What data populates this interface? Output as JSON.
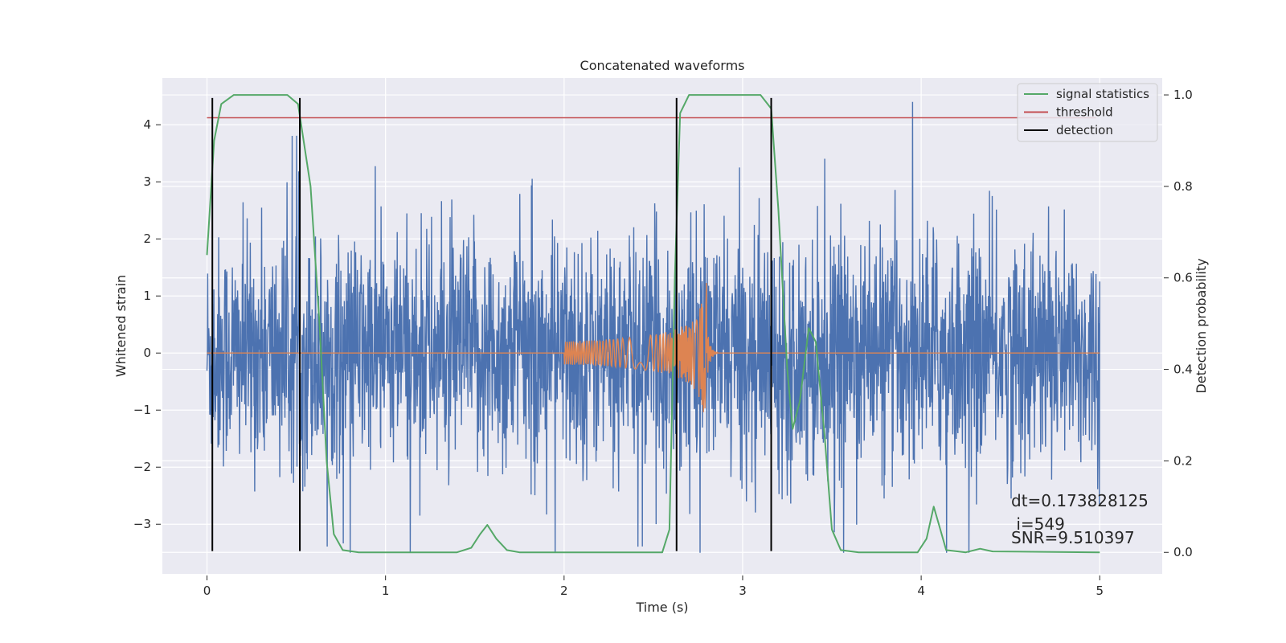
{
  "chart_data": {
    "type": "line",
    "title": "Concatenated waveforms",
    "xlabel": "Time (s)",
    "ylabel": "Whitened strain",
    "ylabel_right": "Detection probability",
    "xlim": [
      -0.25,
      5.35
    ],
    "ylim": [
      -3.87,
      4.82
    ],
    "ylim_right": [
      -0.047,
      1.037
    ],
    "xticks": [
      "0",
      "1",
      "2",
      "3",
      "4",
      "5"
    ],
    "yticks": [
      "−3",
      "−2",
      "−1",
      "0",
      "1",
      "2",
      "3",
      "4"
    ],
    "yticks_right": [
      "0.0",
      "0.2",
      "0.4",
      "0.6",
      "0.8",
      "1.0"
    ],
    "grid": true,
    "legend_position": "top-right",
    "colors": {
      "strain": "#4c72b0",
      "template": "#dd8452",
      "signal": "#55a868",
      "threshold": "#c44e52",
      "detection": "#000000",
      "background": "#eaeaf2"
    },
    "series": [
      {
        "name": "signal statistics",
        "axis": "right",
        "points": [
          [
            0.0,
            0.65
          ],
          [
            0.04,
            0.9
          ],
          [
            0.08,
            0.98
          ],
          [
            0.15,
            1.0
          ],
          [
            0.45,
            1.0
          ],
          [
            0.51,
            0.98
          ],
          [
            0.58,
            0.8
          ],
          [
            0.63,
            0.5
          ],
          [
            0.67,
            0.2
          ],
          [
            0.71,
            0.04
          ],
          [
            0.76,
            0.005
          ],
          [
            0.85,
            0.0
          ],
          [
            1.4,
            0.0
          ],
          [
            1.48,
            0.01
          ],
          [
            1.53,
            0.04
          ],
          [
            1.57,
            0.06
          ],
          [
            1.62,
            0.03
          ],
          [
            1.68,
            0.005
          ],
          [
            1.75,
            0.0
          ],
          [
            2.55,
            0.0
          ],
          [
            2.59,
            0.05
          ],
          [
            2.62,
            0.6
          ],
          [
            2.65,
            0.96
          ],
          [
            2.7,
            1.0
          ],
          [
            3.1,
            1.0
          ],
          [
            3.16,
            0.97
          ],
          [
            3.2,
            0.75
          ],
          [
            3.25,
            0.4
          ],
          [
            3.28,
            0.27
          ],
          [
            3.32,
            0.33
          ],
          [
            3.37,
            0.49
          ],
          [
            3.41,
            0.46
          ],
          [
            3.46,
            0.25
          ],
          [
            3.5,
            0.05
          ],
          [
            3.55,
            0.005
          ],
          [
            3.65,
            0.0
          ],
          [
            3.98,
            0.0
          ],
          [
            4.03,
            0.03
          ],
          [
            4.07,
            0.1
          ],
          [
            4.1,
            0.06
          ],
          [
            4.14,
            0.005
          ],
          [
            4.25,
            0.0
          ],
          [
            4.33,
            0.008
          ],
          [
            4.4,
            0.002
          ],
          [
            5.0,
            0.0
          ]
        ]
      },
      {
        "name": "threshold",
        "axis": "right",
        "points": [
          [
            0.0,
            0.95
          ],
          [
            4.98,
            0.95
          ]
        ]
      },
      {
        "name": "detection",
        "axis": "left",
        "x": [
          0.03,
          0.52,
          2.63,
          3.16
        ]
      }
    ],
    "annotations": [
      "dt=0.173828125",
      " i=549",
      "SNR=9.510397"
    ]
  }
}
